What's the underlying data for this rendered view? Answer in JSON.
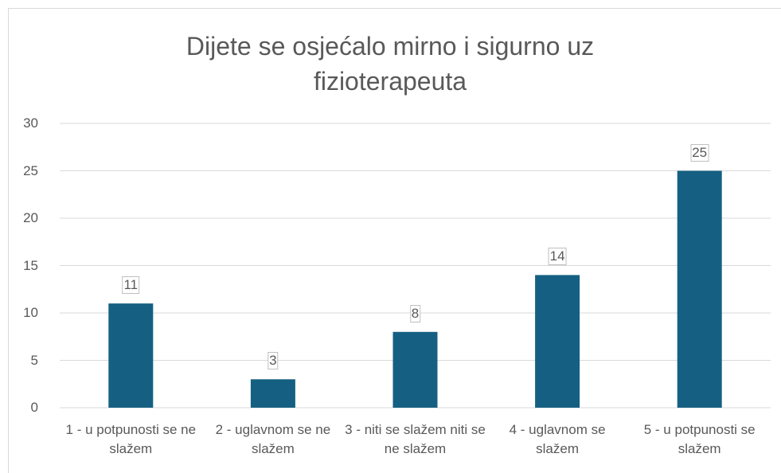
{
  "chart_data": {
    "type": "bar",
    "title": "Dijete se osjećalo mirno i sigurno uz fizioterapeuta",
    "categories": [
      "1 - u potpunosti se ne slažem",
      "2 - uglavnom se ne slažem",
      "3 - niti se slažem niti se ne slažem",
      "4 - uglavnom se slažem",
      "5 - u potpunosti se slažem"
    ],
    "values": [
      11,
      3,
      8,
      14,
      25
    ],
    "color": "#156082",
    "ylim": [
      0,
      30
    ],
    "yticks": [
      0,
      5,
      10,
      15,
      20,
      25,
      30
    ],
    "grid": true
  }
}
